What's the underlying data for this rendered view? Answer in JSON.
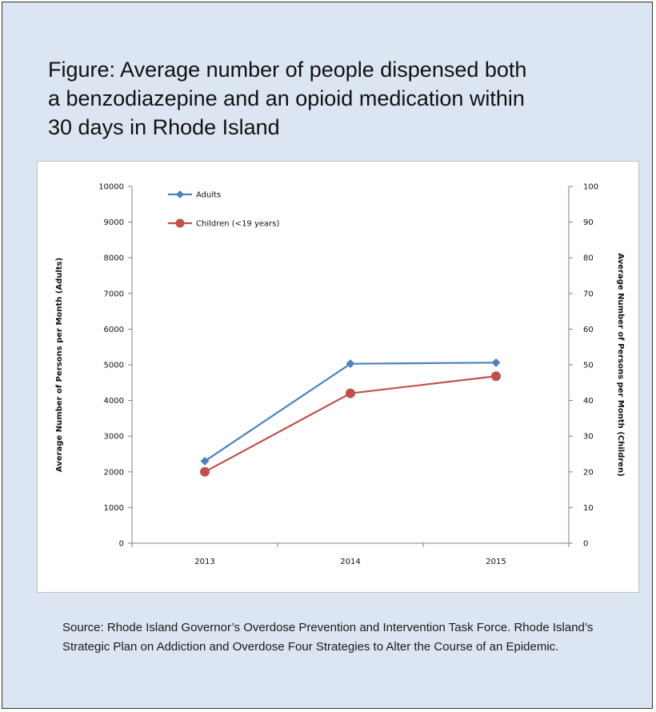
{
  "figure": {
    "title": "Figure: Average number of people dispensed both\na benzodiazepine and an opioid medication within\n30 days in Rhode Island",
    "source": "Source: Rhode Island Governor’s Overdose Prevention and Intervention Task Force. Rhode Island’s Strategic Plan on Addiction and Overdose Four Strategies to Alter the Course of an Epidemic."
  },
  "chart_data": {
    "type": "line",
    "title": "",
    "categories": [
      "2013",
      "2014",
      "2015"
    ],
    "ylabel": "Average Number of Persons per Month (Adults)",
    "y2label": "Average Number of Persons per Month (Children)",
    "ylim": [
      0,
      10000
    ],
    "y2lim": [
      0,
      100
    ],
    "yticks": [
      "0",
      "1000",
      "2000",
      "3000",
      "4000",
      "5000",
      "6000",
      "7000",
      "8000",
      "9000",
      "10000"
    ],
    "y2ticks": [
      "0",
      "10",
      "20",
      "30",
      "40",
      "50",
      "60",
      "70",
      "80",
      "90",
      "100"
    ],
    "grid": false,
    "legend_position": "top-left",
    "series": [
      {
        "name": "Adults",
        "axis": "left",
        "color": "#4f81bd",
        "values": [
          2300,
          5030,
          5060
        ]
      },
      {
        "name": "Children (<19 years)",
        "axis": "right",
        "color": "#c0504d",
        "values": [
          20,
          42,
          46.8
        ]
      }
    ]
  }
}
